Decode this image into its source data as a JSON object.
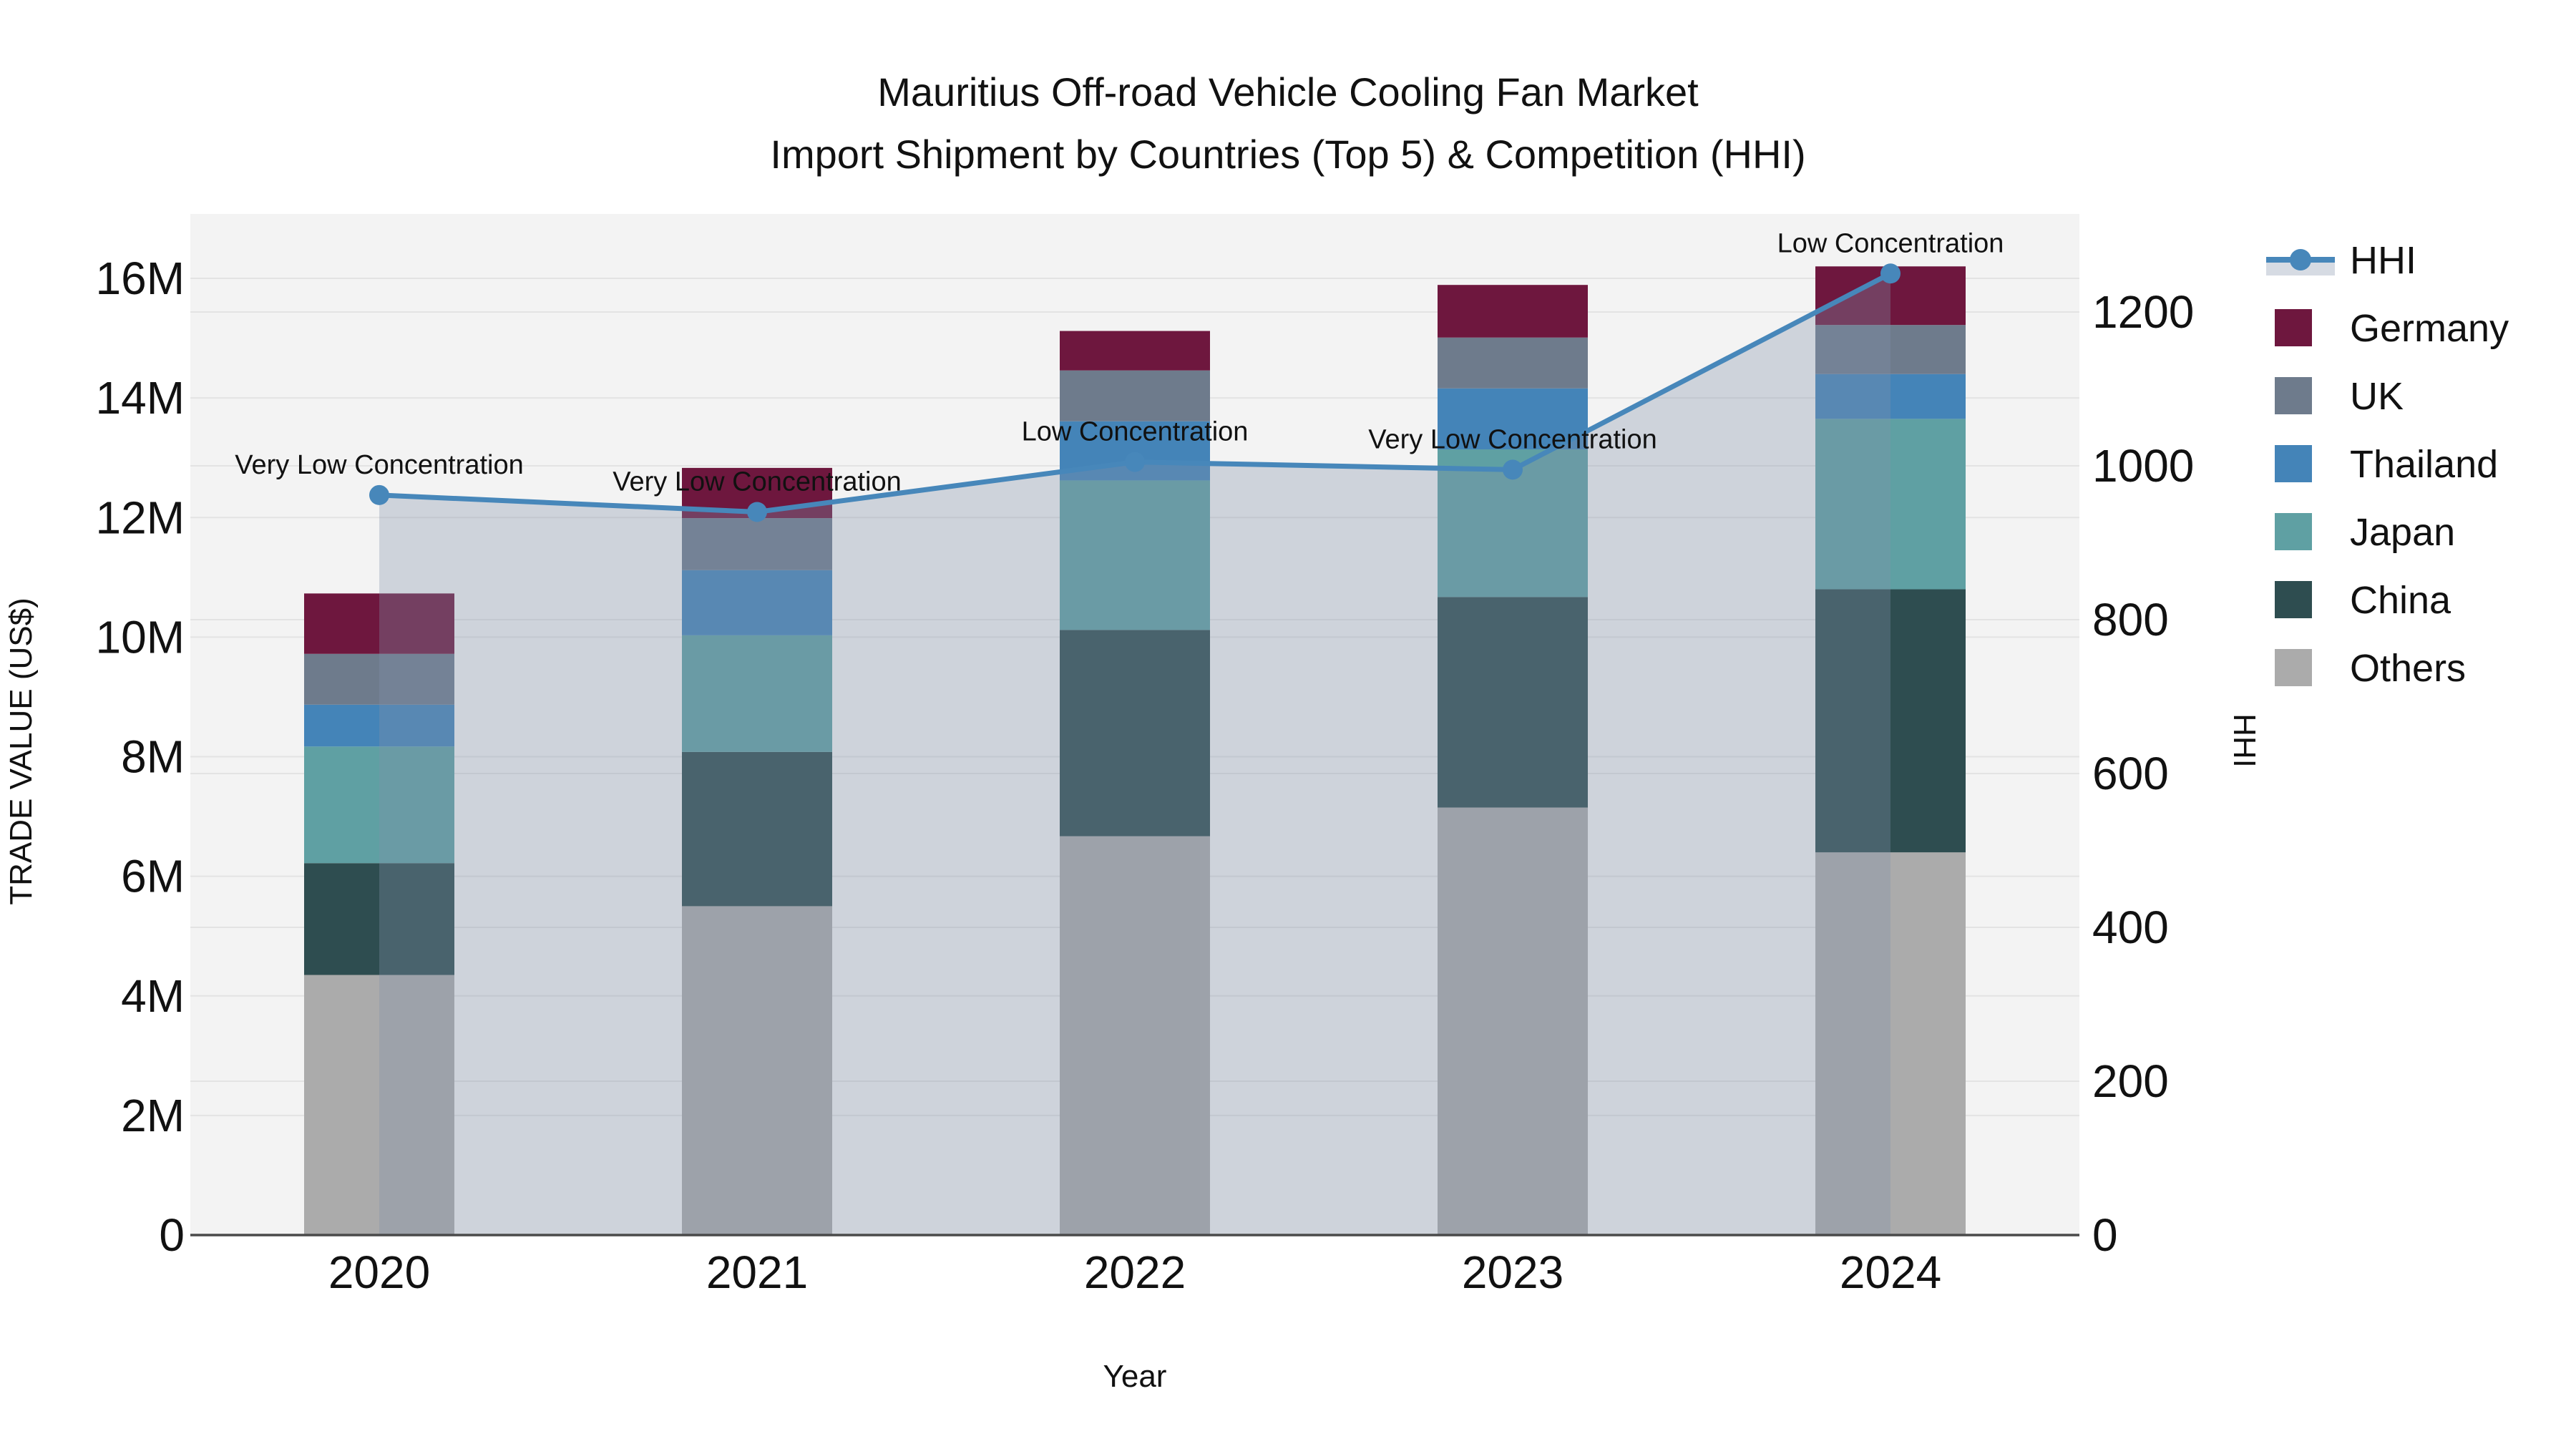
{
  "title": {
    "line1": "Mauritius Off-road Vehicle Cooling Fan Market",
    "line2": "Import Shipment by Countries (Top 5) & Competition (HHI)"
  },
  "axes": {
    "y_left": {
      "title": "TRADE VALUE (US$)",
      "tick_labels": [
        "0",
        "2M",
        "4M",
        "6M",
        "8M",
        "10M",
        "12M",
        "14M",
        "16M"
      ],
      "tick_values_millions": [
        0,
        2,
        4,
        6,
        8,
        10,
        12,
        14,
        16
      ],
      "range_millions": [
        0,
        16
      ]
    },
    "y_right": {
      "title": "HHI",
      "tick_labels": [
        "0",
        "200",
        "400",
        "600",
        "800",
        "1000",
        "1200"
      ],
      "tick_values": [
        0,
        200,
        400,
        600,
        800,
        1000,
        1200
      ],
      "range": [
        0,
        1200
      ]
    },
    "x": {
      "title": "Year",
      "tick_labels": [
        "2020",
        "2021",
        "2022",
        "2023",
        "2024"
      ]
    }
  },
  "legend": {
    "items": [
      {
        "label": "HHI",
        "type": "line"
      },
      {
        "label": "Germany",
        "type": "swatch"
      },
      {
        "label": "UK",
        "type": "swatch"
      },
      {
        "label": "Thailand",
        "type": "swatch"
      },
      {
        "label": "Japan",
        "type": "swatch"
      },
      {
        "label": "China",
        "type": "swatch"
      },
      {
        "label": "Others",
        "type": "swatch"
      }
    ]
  },
  "colors": {
    "Germany": "#6E173E",
    "UK": "#6E7B8C",
    "Thailand": "#4484B8",
    "Japan": "#5FA0A3",
    "China": "#2E4D50",
    "Others": "#ABABAB",
    "hhi_line": "#4787BA",
    "hhi_area_fill": "rgba(130,145,170,0.33)",
    "plot_background": "#F3F3F3",
    "gridline": "#E3E3E3",
    "axis_line": "#4A4A4A",
    "text": "#111111"
  },
  "chart_data": {
    "type": "bar",
    "stacked": true,
    "secondary_line": true,
    "title": "Mauritius Off-road Vehicle Cooling Fan Market Import Shipment by Countries (Top 5) & Competition (HHI)",
    "xlabel": "Year",
    "ylabel_left": "TRADE VALUE (US$)",
    "ylabel_right": "HHI",
    "categories": [
      "2020",
      "2021",
      "2022",
      "2023",
      "2024"
    ],
    "unit": "US$ millions",
    "series": [
      {
        "name": "Others",
        "values_millions": [
          4.35,
          5.5,
          6.67,
          7.15,
          6.4
        ]
      },
      {
        "name": "China",
        "values_millions": [
          1.87,
          2.58,
          3.45,
          3.52,
          4.4
        ]
      },
      {
        "name": "Japan",
        "values_millions": [
          1.95,
          1.95,
          2.5,
          2.47,
          2.85
        ]
      },
      {
        "name": "Thailand",
        "values_millions": [
          0.7,
          1.09,
          0.99,
          1.02,
          0.75
        ]
      },
      {
        "name": "UK",
        "values_millions": [
          0.85,
          0.87,
          0.85,
          0.85,
          0.82
        ]
      },
      {
        "name": "Germany",
        "values_millions": [
          1.01,
          0.84,
          0.66,
          0.88,
          0.98
        ]
      }
    ],
    "bar_totals_millions": [
      10.73,
      12.83,
      15.12,
      15.89,
      16.2
    ],
    "line": {
      "name": "HHI",
      "axis": "right",
      "values": [
        962,
        940,
        1005,
        995,
        1250
      ],
      "area_fill": true
    },
    "annotations": [
      {
        "year": "2020",
        "text": "Very Low Concentration"
      },
      {
        "year": "2021",
        "text": "Very Low Concentration"
      },
      {
        "year": "2022",
        "text": "Low Concentration"
      },
      {
        "year": "2023",
        "text": "Very Low Concentration"
      },
      {
        "year": "2024",
        "text": "Low Concentration"
      }
    ],
    "ylim_left_millions": [
      0,
      16
    ],
    "ylim_right": [
      0,
      1200
    ],
    "grid": true,
    "legend_position": "right"
  }
}
